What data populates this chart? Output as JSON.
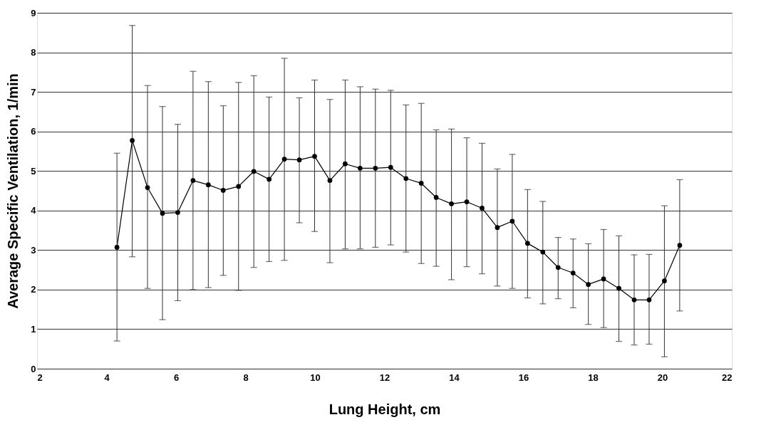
{
  "chart_data": {
    "type": "line",
    "xlabel": "Lung Height, cm",
    "ylabel": "Average Specific Ventilation, 1/min",
    "x": [
      4.3,
      4.74,
      5.18,
      5.61,
      6.05,
      6.49,
      6.93,
      7.36,
      7.8,
      8.24,
      8.68,
      9.12,
      9.55,
      9.99,
      10.43,
      10.87,
      11.3,
      11.74,
      12.18,
      12.62,
      13.06,
      13.49,
      13.93,
      14.37,
      14.81,
      15.25,
      15.68,
      16.12,
      16.56,
      17.0,
      17.43,
      17.87,
      18.31,
      18.75,
      19.19,
      19.62,
      20.06,
      20.5
    ],
    "series": [
      {
        "color": "#000000",
        "values": [
          3.07,
          5.77,
          4.58,
          3.93,
          3.95,
          4.76,
          4.65,
          4.51,
          4.61,
          4.99,
          4.79,
          5.3,
          5.28,
          5.37,
          4.76,
          5.18,
          5.07,
          5.07,
          5.09,
          4.81,
          4.69,
          4.33,
          4.17,
          4.22,
          4.06,
          3.57,
          3.73,
          3.17,
          2.95,
          2.56,
          2.42,
          2.13,
          2.27,
          2.03,
          1.74,
          1.74,
          2.22,
          3.12
        ],
        "errors": [
          [
            0.7,
            5.45
          ],
          [
            2.83,
            8.68
          ],
          [
            2.03,
            7.16
          ],
          [
            1.24,
            6.63
          ],
          [
            1.72,
            6.18
          ],
          [
            2.0,
            7.52
          ],
          [
            2.05,
            7.26
          ],
          [
            2.36,
            6.65
          ],
          [
            1.98,
            7.24
          ],
          [
            2.56,
            7.41
          ],
          [
            2.71,
            6.87
          ],
          [
            2.74,
            7.85
          ],
          [
            3.69,
            6.85
          ],
          [
            3.47,
            7.3
          ],
          [
            2.68,
            6.81
          ],
          [
            3.03,
            7.3
          ],
          [
            3.03,
            7.13
          ],
          [
            3.07,
            7.07
          ],
          [
            3.13,
            7.04
          ],
          [
            2.95,
            6.67
          ],
          [
            2.66,
            6.71
          ],
          [
            2.59,
            6.04
          ],
          [
            2.25,
            6.06
          ],
          [
            2.58,
            5.84
          ],
          [
            2.4,
            5.7
          ],
          [
            2.09,
            5.05
          ],
          [
            2.03,
            5.42
          ],
          [
            1.79,
            4.53
          ],
          [
            1.64,
            4.23
          ],
          [
            1.77,
            3.32
          ],
          [
            1.54,
            3.28
          ],
          [
            1.12,
            3.16
          ],
          [
            1.04,
            3.52
          ],
          [
            0.69,
            3.36
          ],
          [
            0.6,
            2.88
          ],
          [
            0.62,
            2.89
          ],
          [
            0.3,
            4.12
          ],
          [
            1.46,
            4.78
          ]
        ]
      }
    ],
    "xlim": [
      2,
      22
    ],
    "xticks": [
      2,
      4,
      6,
      8,
      10,
      12,
      14,
      16,
      18,
      20,
      22
    ],
    "ylim": [
      0,
      9
    ],
    "yticks": [
      0,
      1,
      2,
      3,
      4,
      5,
      6,
      7,
      8,
      9
    ],
    "grid": "y",
    "marker": "circle",
    "line_style": "solid",
    "legend": false
  }
}
